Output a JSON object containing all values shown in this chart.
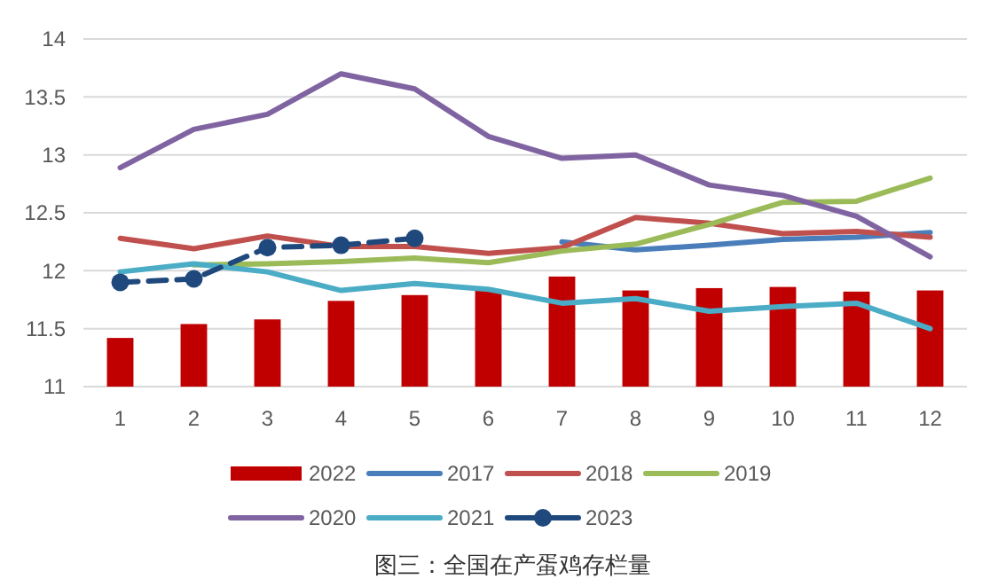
{
  "chart_data": {
    "type": "line",
    "title": "图三：全国在产蛋鸡存栏量",
    "categories": [
      "1",
      "2",
      "3",
      "4",
      "5",
      "6",
      "7",
      "8",
      "9",
      "10",
      "11",
      "12"
    ],
    "ylim": [
      11,
      14
    ],
    "yticks": [
      11,
      11.5,
      12,
      12.5,
      13,
      13.5,
      14
    ],
    "grid": "y",
    "legend": "bottom",
    "series": [
      {
        "name": "2022",
        "type": "bar",
        "color": "#c00000",
        "values": [
          11.42,
          11.54,
          11.58,
          11.74,
          11.79,
          11.83,
          11.95,
          11.83,
          11.85,
          11.86,
          11.82,
          11.83
        ]
      },
      {
        "name": "2017",
        "color": "#4a7ebb",
        "values": [
          null,
          null,
          null,
          null,
          null,
          null,
          12.25,
          12.18,
          12.22,
          12.27,
          12.29,
          12.33
        ]
      },
      {
        "name": "2018",
        "color": "#c0504d",
        "values": [
          12.28,
          12.19,
          12.3,
          12.21,
          12.21,
          12.15,
          12.2,
          12.46,
          12.41,
          12.32,
          12.34,
          12.29
        ]
      },
      {
        "name": "2019",
        "color": "#9bbb59",
        "values": [
          null,
          12.05,
          12.06,
          12.08,
          12.11,
          12.07,
          12.17,
          12.23,
          12.4,
          12.59,
          12.6,
          12.8
        ]
      },
      {
        "name": "2020",
        "color": "#8064a2",
        "values": [
          12.89,
          13.22,
          13.35,
          13.7,
          13.57,
          13.16,
          12.97,
          13,
          12.74,
          12.65,
          12.47,
          12.12
        ]
      },
      {
        "name": "2021",
        "color": "#4bacc6",
        "values": [
          11.99,
          12.06,
          11.99,
          11.83,
          11.89,
          11.84,
          11.72,
          11.76,
          11.65,
          11.69,
          11.72,
          11.5
        ]
      },
      {
        "name": "2023",
        "color": "#1f497d",
        "line_style": "dashed",
        "marker": "circle",
        "values": [
          11.9,
          11.93,
          12.2,
          12.22,
          12.28,
          null,
          null,
          null,
          null,
          null,
          null,
          null
        ]
      }
    ]
  }
}
